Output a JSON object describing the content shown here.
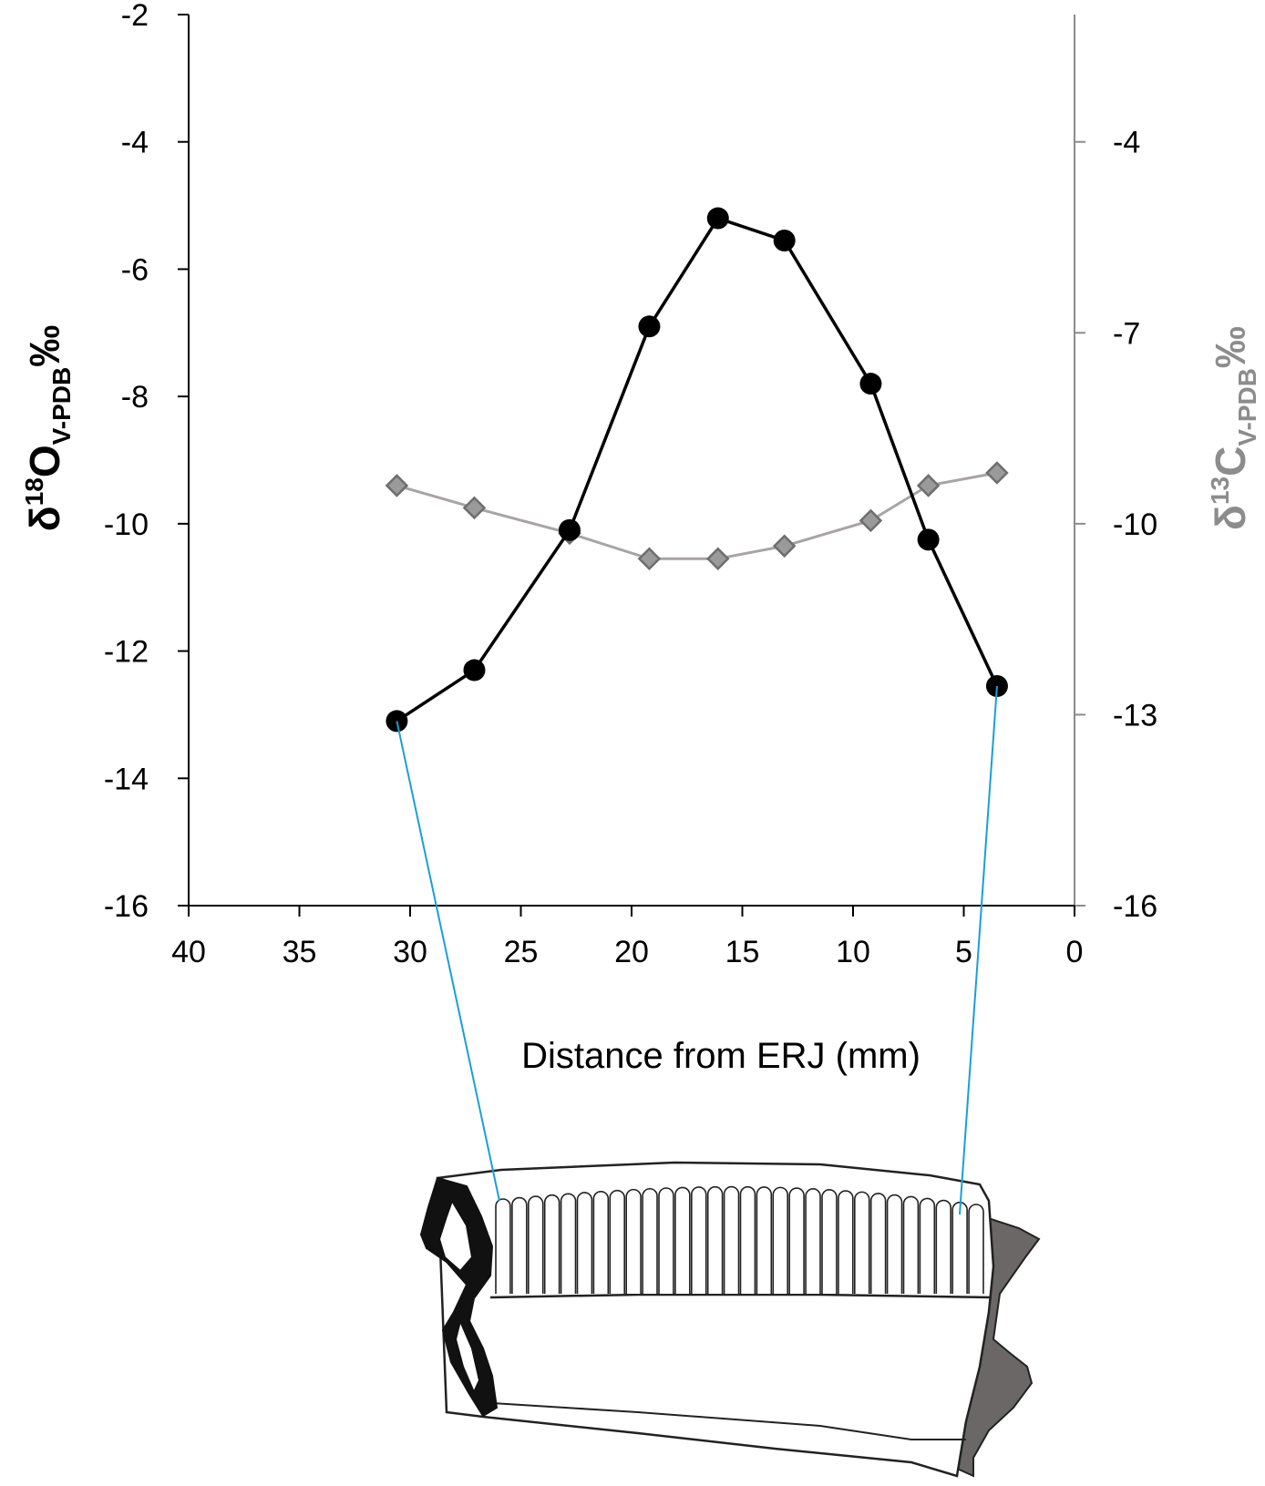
{
  "chart_data": {
    "type": "line",
    "xlabel": "Distance from ERJ (mm)",
    "x_axis": {
      "range": [
        0,
        40
      ],
      "reversed": true,
      "ticks": [
        40,
        35,
        30,
        25,
        20,
        15,
        10,
        5,
        0
      ]
    },
    "y_left": {
      "label_main": "δ",
      "label_sup": "18",
      "label_element": "O",
      "label_sub": "V-PDB",
      "label_unit": "‰",
      "range": [
        -16,
        -2
      ],
      "ticks": [
        -2,
        -4,
        -6,
        -8,
        -10,
        -12,
        -14,
        -16
      ],
      "color": "#000000"
    },
    "y_right": {
      "label_main": "δ",
      "label_sup": "13",
      "label_element": "C",
      "label_sub": "V-PDB",
      "label_unit": "‰",
      "range": [
        -16,
        -2
      ],
      "ticks": [
        -4,
        -7,
        -10,
        -13,
        -16
      ],
      "color": "#8c8c8c"
    },
    "series": [
      {
        "axis": "left",
        "marker": "circle",
        "color": "#000000",
        "x": [
          30.6,
          27.1,
          22.8,
          19.2,
          16.1,
          13.1,
          9.2,
          6.6,
          3.5
        ],
        "y": [
          -13.1,
          -12.3,
          -10.1,
          -6.9,
          -5.2,
          -5.55,
          -7.8,
          -10.25,
          -12.55
        ]
      },
      {
        "axis": "right",
        "marker": "diamond",
        "color": "#9a9a9a",
        "x": [
          30.6,
          27.1,
          22.8,
          19.2,
          16.1,
          13.1,
          9.2,
          6.6,
          3.5
        ],
        "y": [
          -9.4,
          -9.75,
          -10.15,
          -10.55,
          -10.55,
          -10.35,
          -9.95,
          -9.4,
          -9.2
        ]
      }
    ],
    "grid": false,
    "connector_color": "#1a9fd9",
    "illustration": "tooth-enamel-sampling-diagram"
  }
}
